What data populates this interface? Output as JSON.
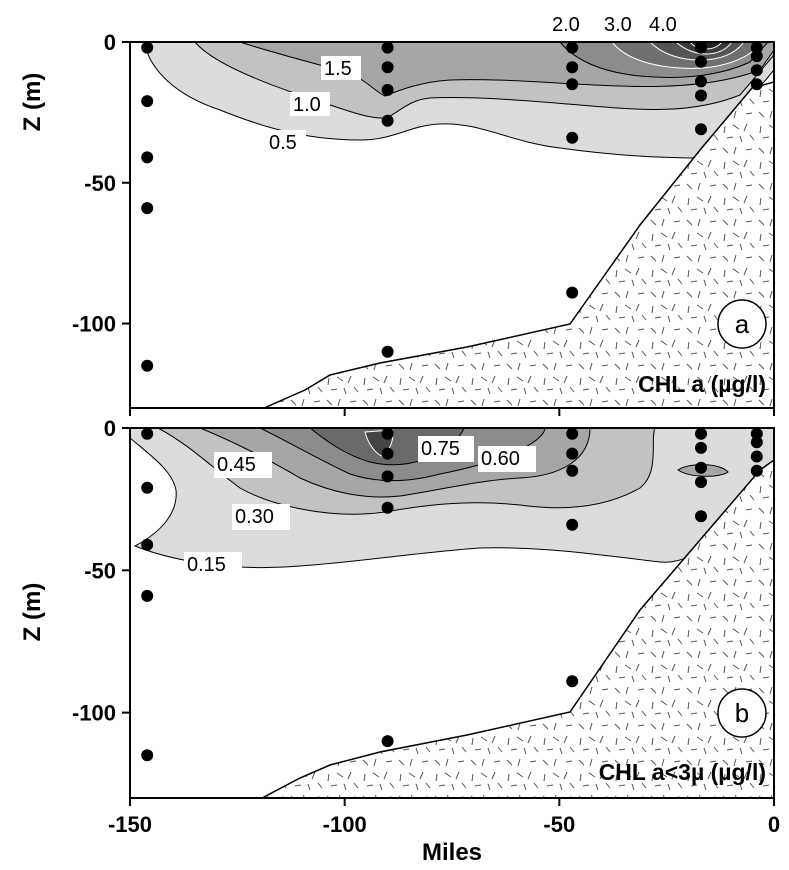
{
  "chart_data": {
    "type": "contour",
    "xlabel": "Miles",
    "ylabel": "Z (m)",
    "x_ticks": [
      -150,
      -100,
      -50,
      0
    ],
    "y_ticks": [
      0,
      -50,
      -100
    ],
    "xlim": [
      -150,
      0
    ],
    "ylim": [
      -130,
      0
    ],
    "stations": [
      {
        "x": -146,
        "z": [
          -2,
          -21,
          -41,
          -59,
          -115
        ]
      },
      {
        "x": -90,
        "z": [
          -2,
          -9,
          -17,
          -28,
          -110
        ]
      },
      {
        "x": -47,
        "z": [
          -2,
          -9,
          -15,
          -34,
          -89
        ]
      },
      {
        "x": -17,
        "z": [
          -2,
          -7,
          -14,
          -19,
          -31
        ]
      },
      {
        "x": -4,
        "z": [
          -2,
          -5,
          -10,
          -15
        ]
      }
    ],
    "bottom_profile": {
      "x": [
        -118,
        -100,
        -90,
        -70,
        -48,
        -30,
        -10,
        -2,
        0
      ],
      "z": [
        -130,
        -122,
        -115,
        -110,
        -100,
        -60,
        -25,
        -10,
        -8
      ]
    },
    "panels": [
      {
        "id": "a",
        "letter": "a",
        "title": "CHL a (µg/l)",
        "contour_levels": [
          "0.5",
          "1.0",
          "1.5",
          "2.0",
          "3.0",
          "4.0"
        ]
      },
      {
        "id": "b",
        "letter": "b",
        "title": "CHL a<3µ (µg/l)",
        "contour_levels": [
          "0.15",
          "0.30",
          "0.45",
          "0.60",
          "0.75"
        ]
      }
    ]
  }
}
